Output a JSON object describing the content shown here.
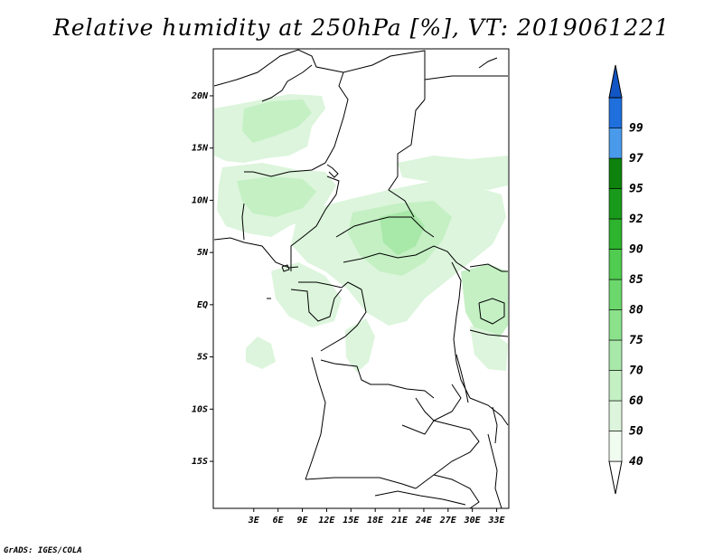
{
  "title": "Relative humidity at 250hPa [%], VT: 2019061221",
  "credit": "GrADS: IGES/COLA",
  "map": {
    "lon_range": [
      -2,
      34.5
    ],
    "lat_range": [
      -19.5,
      24.5
    ],
    "lat_ticks": [
      {
        "value": 20,
        "label": "20N"
      },
      {
        "value": 15,
        "label": "15N"
      },
      {
        "value": 10,
        "label": "10N"
      },
      {
        "value": 5,
        "label": "5N"
      },
      {
        "value": 0,
        "label": "EQ"
      },
      {
        "value": -5,
        "label": "5S"
      },
      {
        "value": -10,
        "label": "10S"
      },
      {
        "value": -15,
        "label": "15S"
      }
    ],
    "lon_ticks": [
      {
        "value": 3,
        "label": "3E"
      },
      {
        "value": 6,
        "label": "6E"
      },
      {
        "value": 9,
        "label": "9E"
      },
      {
        "value": 12,
        "label": "12E"
      },
      {
        "value": 15,
        "label": "15E"
      },
      {
        "value": 18,
        "label": "18E"
      },
      {
        "value": 21,
        "label": "21E"
      },
      {
        "value": 24,
        "label": "24E"
      },
      {
        "value": 27,
        "label": "27E"
      },
      {
        "value": 30,
        "label": "30E"
      },
      {
        "value": 33,
        "label": "33E"
      }
    ]
  },
  "colorbar": {
    "levels": [
      {
        "label": "40",
        "color": "#f0fcf0"
      },
      {
        "label": "50",
        "color": "#dcf5dc"
      },
      {
        "label": "60",
        "color": "#c4f0c4"
      },
      {
        "label": "70",
        "color": "#a8e8a8"
      },
      {
        "label": "75",
        "color": "#8be28b"
      },
      {
        "label": "80",
        "color": "#6cd86c"
      },
      {
        "label": "85",
        "color": "#50cc50"
      },
      {
        "label": "90",
        "color": "#2eb42e"
      },
      {
        "label": "92",
        "color": "#1a9a1a"
      },
      {
        "label": "95",
        "color": "#0d820d"
      },
      {
        "label": "97",
        "color": "#4a9aeb"
      },
      {
        "label": "99",
        "color": "#1f6fdd"
      }
    ],
    "top_color": "#1255c4",
    "bottom_color": "#ffffff"
  }
}
